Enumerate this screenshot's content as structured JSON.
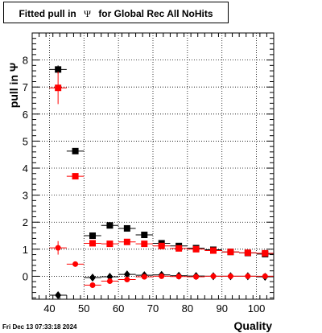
{
  "title": {
    "prefix": "Fitted pull in",
    "symbol": "Ψ",
    "suffix": "for Global Rec All NoHits"
  },
  "footer": {
    "timestamp": "Fri Dec 13 07:33:18 2024"
  },
  "chart_data": {
    "type": "scatter",
    "title": "Fitted pull in Ψ for Global Rec All NoHits",
    "xlabel": "Quality",
    "ylabel": "pull in Ψ",
    "xlim": [
      35,
      105
    ],
    "ylim": [
      -0.85,
      9.0
    ],
    "xticks": [
      40,
      50,
      60,
      70,
      80,
      90,
      100
    ],
    "yticks": [
      0,
      1,
      2,
      3,
      4,
      5,
      6,
      7,
      8
    ],
    "grid": true,
    "series": [
      {
        "marker": "square",
        "color": "#000000",
        "points": [
          {
            "x": 42.5,
            "y": 7.65,
            "xerr": 2.5,
            "yerr": 0.15
          },
          {
            "x": 47.5,
            "y": 4.63,
            "xerr": 2.5,
            "yerr": 0.05
          },
          {
            "x": 52.5,
            "y": 1.5,
            "xerr": 2.5,
            "yerr": 0.05
          },
          {
            "x": 57.5,
            "y": 1.88,
            "xerr": 2.5,
            "yerr": 0.04
          },
          {
            "x": 62.5,
            "y": 1.77,
            "xerr": 2.5,
            "yerr": 0.03
          },
          {
            "x": 67.5,
            "y": 1.53,
            "xerr": 2.5,
            "yerr": 0.03
          },
          {
            "x": 72.5,
            "y": 1.22,
            "xerr": 2.5,
            "yerr": 0.03
          },
          {
            "x": 77.5,
            "y": 1.12,
            "xerr": 2.5,
            "yerr": 0.03
          },
          {
            "x": 82.5,
            "y": 1.04,
            "xerr": 2.5,
            "yerr": 0.03
          },
          {
            "x": 87.5,
            "y": 0.98,
            "xerr": 2.5,
            "yerr": 0.03
          },
          {
            "x": 92.5,
            "y": 0.9,
            "xerr": 2.5,
            "yerr": 0.03
          },
          {
            "x": 97.5,
            "y": 0.86,
            "xerr": 2.5,
            "yerr": 0.03
          },
          {
            "x": 102.5,
            "y": 0.82,
            "xerr": 2.5,
            "yerr": 0.03
          }
        ]
      },
      {
        "marker": "square",
        "color": "#ff0000",
        "points": [
          {
            "x": 42.5,
            "y": 6.97,
            "xerr": 2.5,
            "yerr": 0.6
          },
          {
            "x": 47.5,
            "y": 3.7,
            "xerr": 2.5,
            "yerr": 0.05
          },
          {
            "x": 52.5,
            "y": 1.22,
            "xerr": 2.5,
            "yerr": 0.05
          },
          {
            "x": 57.5,
            "y": 1.2,
            "xerr": 2.5,
            "yerr": 0.04
          },
          {
            "x": 62.5,
            "y": 1.27,
            "xerr": 2.5,
            "yerr": 0.03
          },
          {
            "x": 67.5,
            "y": 1.2,
            "xerr": 2.5,
            "yerr": 0.03
          },
          {
            "x": 72.5,
            "y": 1.12,
            "xerr": 2.5,
            "yerr": 0.03
          },
          {
            "x": 77.5,
            "y": 1.03,
            "xerr": 2.5,
            "yerr": 0.03
          },
          {
            "x": 82.5,
            "y": 1.0,
            "xerr": 2.5,
            "yerr": 0.03
          },
          {
            "x": 87.5,
            "y": 0.95,
            "xerr": 2.5,
            "yerr": 0.03
          },
          {
            "x": 92.5,
            "y": 0.9,
            "xerr": 2.5,
            "yerr": 0.03
          },
          {
            "x": 97.5,
            "y": 0.87,
            "xerr": 2.5,
            "yerr": 0.03
          },
          {
            "x": 102.5,
            "y": 0.85,
            "xerr": 2.5,
            "yerr": 0.03
          }
        ]
      },
      {
        "marker": "diamond",
        "color": "#000000",
        "points": [
          {
            "x": 42.5,
            "y": -0.7,
            "xerr": 2.5,
            "yerr": 0.05
          },
          {
            "x": 52.5,
            "y": -0.05,
            "xerr": 2.5,
            "yerr": 0.04
          },
          {
            "x": 57.5,
            "y": -0.02,
            "xerr": 2.5,
            "yerr": 0.03
          },
          {
            "x": 62.5,
            "y": 0.07,
            "xerr": 2.5,
            "yerr": 0.03
          },
          {
            "x": 67.5,
            "y": 0.04,
            "xerr": 2.5,
            "yerr": 0.03
          },
          {
            "x": 72.5,
            "y": 0.05,
            "xerr": 2.5,
            "yerr": 0.03
          },
          {
            "x": 77.5,
            "y": 0.02,
            "xerr": 2.5,
            "yerr": 0.03
          },
          {
            "x": 82.5,
            "y": 0.01,
            "xerr": 2.5,
            "yerr": 0.03
          },
          {
            "x": 87.5,
            "y": 0.0,
            "xerr": 2.5,
            "yerr": 0.03
          },
          {
            "x": 92.5,
            "y": 0.0,
            "xerr": 2.5,
            "yerr": 0.03
          },
          {
            "x": 97.5,
            "y": 0.0,
            "xerr": 2.5,
            "yerr": 0.03
          },
          {
            "x": 102.5,
            "y": -0.02,
            "xerr": 2.5,
            "yerr": 0.03
          }
        ]
      },
      {
        "marker": "circle",
        "color": "#ff0000",
        "points": [
          {
            "x": 42.5,
            "y": 1.05,
            "xerr": 2.5,
            "yerr": 0.25
          },
          {
            "x": 47.5,
            "y": 0.45,
            "xerr": 2.5,
            "yerr": 0.05
          },
          {
            "x": 52.5,
            "y": -0.33,
            "xerr": 2.5,
            "yerr": 0.04
          },
          {
            "x": 57.5,
            "y": -0.18,
            "xerr": 2.5,
            "yerr": 0.04
          },
          {
            "x": 62.5,
            "y": -0.12,
            "xerr": 2.5,
            "yerr": 0.03
          },
          {
            "x": 67.5,
            "y": -0.02,
            "xerr": 2.5,
            "yerr": 0.03
          },
          {
            "x": 72.5,
            "y": 0.0,
            "xerr": 2.5,
            "yerr": 0.03
          },
          {
            "x": 77.5,
            "y": -0.01,
            "xerr": 2.5,
            "yerr": 0.03
          },
          {
            "x": 82.5,
            "y": -0.02,
            "xerr": 2.5,
            "yerr": 0.03
          },
          {
            "x": 87.5,
            "y": 0.0,
            "xerr": 2.5,
            "yerr": 0.03
          },
          {
            "x": 92.5,
            "y": 0.0,
            "xerr": 2.5,
            "yerr": 0.03
          },
          {
            "x": 97.5,
            "y": 0.0,
            "xerr": 2.5,
            "yerr": 0.03
          },
          {
            "x": 102.5,
            "y": 0.0,
            "xerr": 2.5,
            "yerr": 0.03
          }
        ]
      }
    ]
  }
}
